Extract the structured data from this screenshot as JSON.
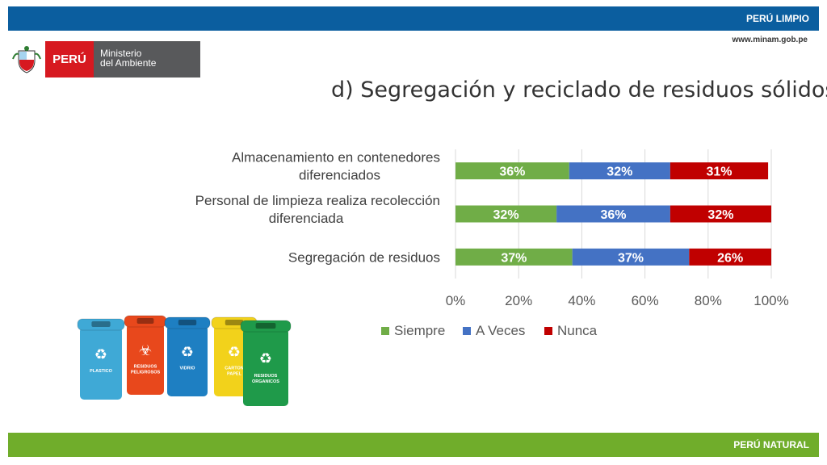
{
  "header": {
    "brand": "PERÚ LIMPIO",
    "url": "www.minam.gob.pe"
  },
  "logo": {
    "country": "PERÚ",
    "ministry_line1": "Ministerio",
    "ministry_line2": "del Ambiente"
  },
  "footer": {
    "brand": "PERÚ NATURAL"
  },
  "chart_data": {
    "type": "bar",
    "orientation": "horizontal",
    "stacked": true,
    "title": "d) Segregación y reciclado de residuos sólidos",
    "categories": [
      [
        "Almacenamiento en contenedores",
        "diferenciados"
      ],
      [
        "Personal de limpieza realiza recolección",
        "diferenciada"
      ],
      [
        "Segregación de residuos"
      ]
    ],
    "series": [
      {
        "name": "Siempre",
        "color": "#70ad47",
        "values": [
          36,
          32,
          37
        ],
        "labels": [
          "36%",
          "32%",
          "37%"
        ]
      },
      {
        "name": "A Veces",
        "color": "#4472c4",
        "values": [
          32,
          36,
          37
        ],
        "labels": [
          "32%",
          "36%",
          "37%"
        ]
      },
      {
        "name": "Nunca",
        "color": "#c00000",
        "values": [
          31,
          32,
          26
        ],
        "labels": [
          "31%",
          "32%",
          "26%"
        ]
      }
    ],
    "xlim": [
      0,
      100
    ],
    "ticks": [
      "0%",
      "20%",
      "40%",
      "60%",
      "80%",
      "100%"
    ],
    "grid": true,
    "legend": "bottom"
  },
  "bins": [
    {
      "label": "PLASTICO",
      "color": "#3fa9d6",
      "icon": "recycle-icon"
    },
    {
      "label": "RESIDUOS PELIGROSOS",
      "color": "#e8481c",
      "icon": "biohazard-icon"
    },
    {
      "label": "VIDRIO",
      "color": "#1e7fc2",
      "icon": "recycle-icon"
    },
    {
      "label": "CARTON PAPEL",
      "color": "#f2d21b",
      "icon": "recycle-icon"
    },
    {
      "label": "RESIDUOS ORGANICOS",
      "color": "#1f9a4a",
      "icon": "recycle-icon"
    }
  ]
}
